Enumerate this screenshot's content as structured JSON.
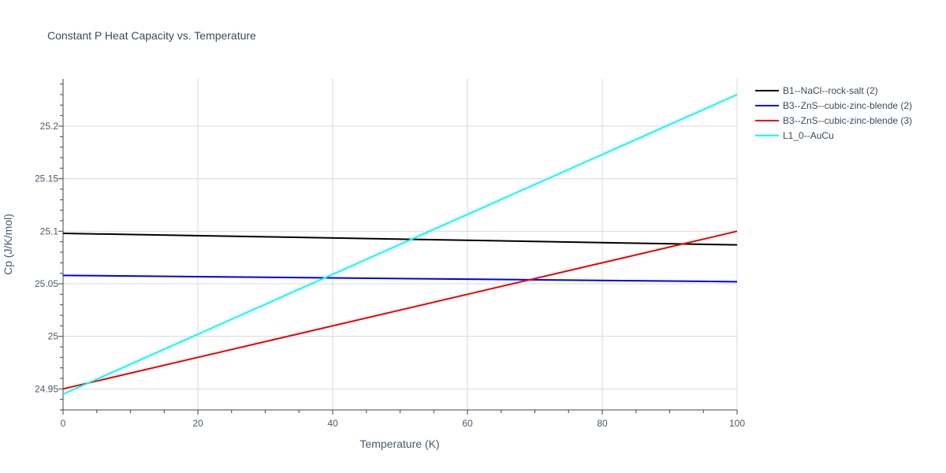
{
  "chart_data": {
    "type": "line",
    "title": "Constant P Heat Capacity vs. Temperature",
    "xlabel": "Temperature (K)",
    "ylabel": "Cp (J/K/mol)",
    "xlim": [
      0,
      100
    ],
    "ylim": [
      24.93,
      25.245
    ],
    "xticks": [
      0,
      20,
      40,
      60,
      80,
      100
    ],
    "xtick_labels": [
      "0",
      "20",
      "40",
      "60",
      "80",
      "100"
    ],
    "yticks": [
      24.95,
      25.0,
      25.05,
      25.1,
      25.15,
      25.2
    ],
    "ytick_labels": [
      "24.95",
      "25",
      "25.05",
      "25.1",
      "25.15",
      "25.2"
    ],
    "grid": true,
    "legend_position": "top-right",
    "series": [
      {
        "name": "B1--NaCl--rock-salt (2)",
        "color": "#000000",
        "x": [
          0,
          100
        ],
        "y": [
          25.098,
          25.087
        ]
      },
      {
        "name": "B3--ZnS--cubic-zinc-blende (2)",
        "color": "#0000ee",
        "x": [
          0,
          100
        ],
        "y": [
          25.058,
          25.052
        ]
      },
      {
        "name": "B3--ZnS--cubic-zinc-blende (3)",
        "color": "#ee0000",
        "x": [
          0,
          100
        ],
        "y": [
          24.95,
          25.1
        ]
      },
      {
        "name": "L1_0--AuCu",
        "color": "#00ffff",
        "x": [
          0,
          100
        ],
        "y": [
          24.945,
          25.23
        ]
      }
    ]
  }
}
